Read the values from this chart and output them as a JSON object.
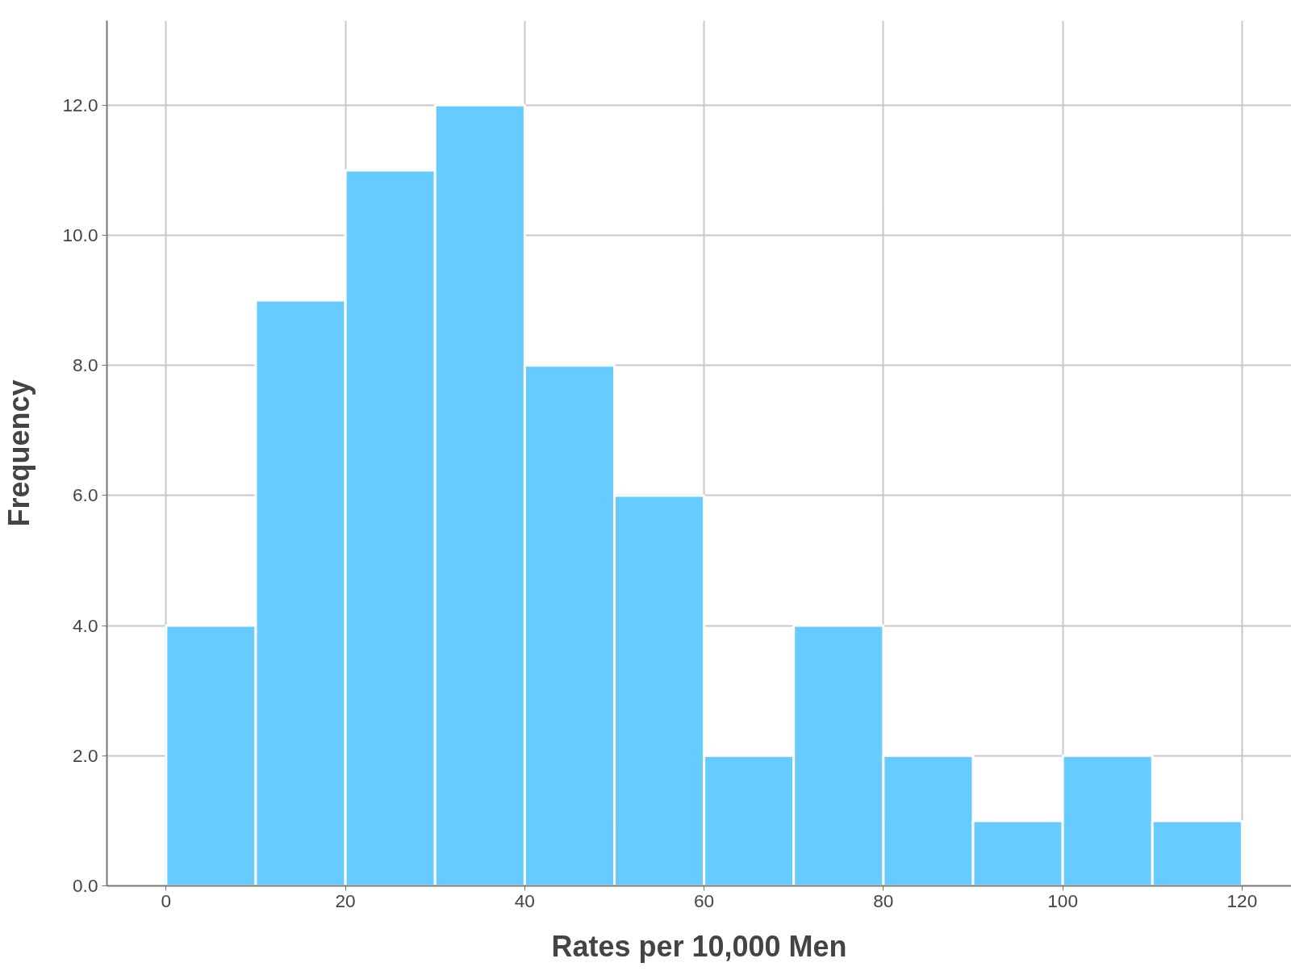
{
  "chart_data": {
    "type": "histogram",
    "xlabel": "Rates per 10,000 Men",
    "ylabel": "Frequency",
    "bins": [
      0,
      10,
      20,
      30,
      40,
      50,
      60,
      70,
      80,
      90,
      100,
      110,
      120
    ],
    "values": [
      4,
      9,
      11,
      12,
      8,
      6,
      2,
      4,
      2,
      1,
      2,
      1
    ],
    "color": "#66ccff",
    "xlim": [
      -6.6,
      125.5
    ],
    "ylim": [
      0,
      13.3
    ],
    "xticks": [
      0,
      20,
      40,
      60,
      80,
      100,
      120
    ],
    "yticks": [
      {
        "value": 0,
        "label": "0.0"
      },
      {
        "value": 2,
        "label": "2.0"
      },
      {
        "value": 4,
        "label": "4.0"
      },
      {
        "value": 6,
        "label": "6.0"
      },
      {
        "value": 8,
        "label": "8.0"
      },
      {
        "value": 10,
        "label": "10.0"
      },
      {
        "value": 12,
        "label": "12.0"
      }
    ],
    "grid": true
  }
}
